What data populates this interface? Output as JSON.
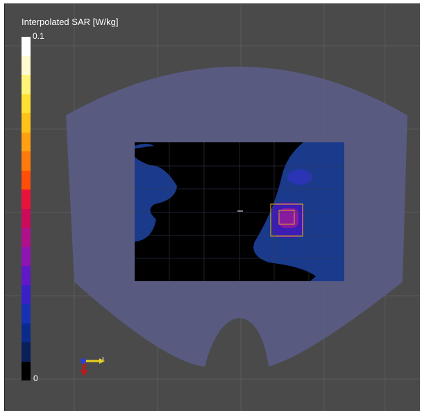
{
  "colorbar": {
    "title": "Interpolated SAR [W/kg]",
    "max_label": "0.1",
    "min_label": "0",
    "colors": [
      "#ffffff",
      "#fffbd0",
      "#fff47a",
      "#ffe033",
      "#ffc21a",
      "#ffa012",
      "#ff7a0a",
      "#ff4d0a",
      "#e8143c",
      "#cc0a5a",
      "#b0108c",
      "#8f14b4",
      "#6018c8",
      "#3820c8",
      "#1830b4",
      "#0a2a8c",
      "#0a1e5a",
      "#000000"
    ]
  },
  "colors": {
    "background": "#4a4a4a",
    "phantom": "#5a5d8a",
    "measured_high_field": "#1a3a8c",
    "measured_low_field": "#000000",
    "peak_outer": "#3c1cb4",
    "peak_inner": "#8a1aa0",
    "zoom_box": "#e0a030"
  },
  "axes_triad": {
    "x_label": "x"
  }
}
